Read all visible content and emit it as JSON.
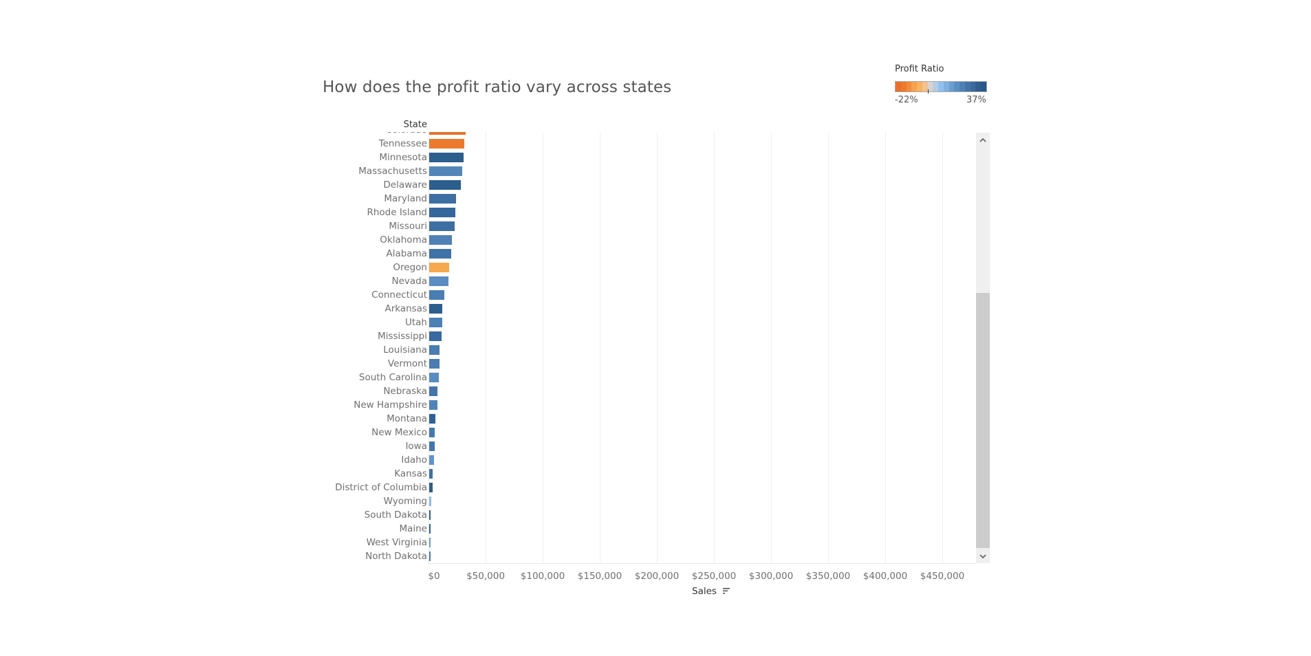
{
  "chart_data": {
    "type": "bar",
    "orientation": "horizontal",
    "title": "How does the profit ratio vary across states",
    "ylabel": "State",
    "xlabel": "Sales",
    "xlim": [
      0,
      480000
    ],
    "x_ticks": [
      "$0",
      "$50,000",
      "$100,000",
      "$150,000",
      "$200,000",
      "$250,000",
      "$300,000",
      "$350,000",
      "$400,000",
      "$450,000"
    ],
    "x_tick_values": [
      0,
      50000,
      100000,
      150000,
      200000,
      250000,
      300000,
      350000,
      400000,
      450000
    ],
    "grid": "vertical",
    "sort": "descending by Sales",
    "legend": {
      "title": "Profit Ratio",
      "min_label": "-22%",
      "max_label": "37%",
      "min": -0.22,
      "max": 0.37,
      "placement": "top-right",
      "colors": [
        "#e8712a",
        "#ee7a2d",
        "#f28d3a",
        "#f6a24d",
        "#f7b263",
        "#f6c18c",
        "#d9d4cc",
        "#b4cde6",
        "#92bfee",
        "#7fb0e0",
        "#6a9ed0",
        "#5a8fc4",
        "#4c80b6",
        "#4274a8",
        "#3a6a9c",
        "#2f5d8f",
        "#29588a"
      ]
    },
    "categories": [
      "Colorado",
      "Tennessee",
      "Minnesota",
      "Massachusetts",
      "Delaware",
      "Maryland",
      "Rhode Island",
      "Missouri",
      "Oklahoma",
      "Alabama",
      "Oregon",
      "Nevada",
      "Connecticut",
      "Arkansas",
      "Utah",
      "Mississippi",
      "Louisiana",
      "Vermont",
      "South Carolina",
      "Nebraska",
      "New Hampshire",
      "Montana",
      "New Mexico",
      "Iowa",
      "Idaho",
      "Kansas",
      "District of Columbia",
      "Wyoming",
      "South Dakota",
      "Maine",
      "West Virginia",
      "North Dakota"
    ],
    "values": [
      32108,
      30662,
      29863,
      28634,
      27451,
      23706,
      22628,
      22205,
      19683,
      19511,
      17431,
      16729,
      13384,
      11678,
      11220,
      10771,
      9217,
      8929,
      8482,
      7465,
      7293,
      5589,
      4784,
      4580,
      4382,
      2914,
      2865,
      1603,
      1316,
      1271,
      1210,
      920
    ],
    "colors": [
      "#e8712a",
      "#ec7a2c",
      "#2c5e8e",
      "#5386b8",
      "#2c5e8e",
      "#3d6fa3",
      "#34679c",
      "#3d6fa3",
      "#4f82b4",
      "#3f72a6",
      "#f6a94f",
      "#5a8dc2",
      "#4a7db1",
      "#2c5e8e",
      "#4d80b3",
      "#386a9f",
      "#4a7db1",
      "#4a7db1",
      "#5a8dc2",
      "#4476aa",
      "#5084b7",
      "#2f6195",
      "#4678ad",
      "#4476aa",
      "#6394c8",
      "#3f72a6",
      "#2c5e8e",
      "#8ebfee",
      "#2f6195",
      "#2f6195",
      "#6a9ed0",
      "#4a7db1"
    ],
    "visible_partial_first_row": true
  },
  "scrollbar": {
    "up_icon": "chevron-up-icon",
    "down_icon": "chevron-down-icon"
  },
  "sort_icon": "sort-descending-icon"
}
